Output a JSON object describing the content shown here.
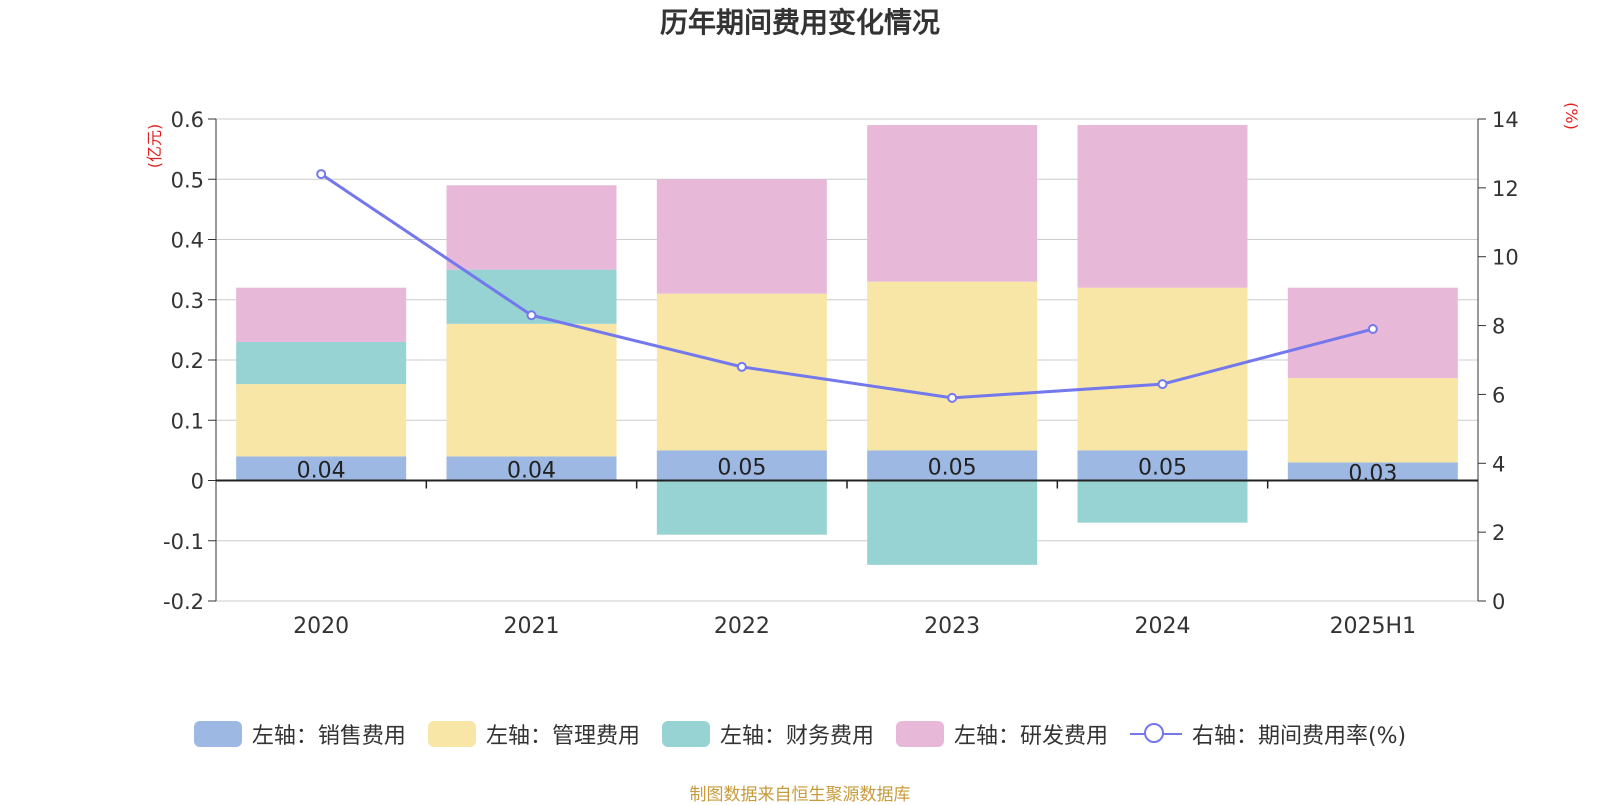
{
  "chart_data": {
    "type": "bar",
    "title": "历年期间费用变化情况",
    "categories": [
      "2020",
      "2021",
      "2022",
      "2023",
      "2024",
      "2025H1"
    ],
    "left_axis": {
      "unit": "(亿元)",
      "ylim": [
        -0.2,
        0.6
      ],
      "ticks": [
        -0.2,
        -0.1,
        0,
        0.1,
        0.2,
        0.3,
        0.4,
        0.5,
        0.6
      ]
    },
    "right_axis": {
      "unit": "(%)",
      "ylim": [
        0,
        14
      ],
      "ticks": [
        0,
        2,
        4,
        6,
        8,
        10,
        12,
        14
      ]
    },
    "series": [
      {
        "name": "左轴：销售费用",
        "axis": "left",
        "type": "bar",
        "color": "#9db8e2",
        "values": [
          0.04,
          0.04,
          0.05,
          0.05,
          0.05,
          0.03
        ],
        "labels": [
          "0.04",
          "0.04",
          "0.05",
          "0.05",
          "0.05",
          "0.03"
        ]
      },
      {
        "name": "左轴：管理费用",
        "axis": "left",
        "type": "bar",
        "color": "#f7e6a6",
        "values": [
          0.12,
          0.22,
          0.26,
          0.28,
          0.27,
          0.14
        ]
      },
      {
        "name": "左轴：财务费用",
        "axis": "left",
        "type": "bar",
        "color": "#97d3d3",
        "values": [
          0.07,
          0.09,
          -0.09,
          -0.14,
          -0.07,
          0.0
        ]
      },
      {
        "name": "左轴：研发费用",
        "axis": "left",
        "type": "bar",
        "color": "#e8b8d8",
        "values": [
          0.09,
          0.14,
          0.19,
          0.26,
          0.27,
          0.15
        ]
      },
      {
        "name": "右轴：期间费用率(%)",
        "axis": "right",
        "type": "line",
        "color": "#7378ec",
        "values": [
          12.4,
          8.3,
          6.8,
          5.9,
          6.3,
          7.9
        ]
      }
    ],
    "grid": true,
    "legend_position": "bottom"
  },
  "source_note": "制图数据来自恒生聚源数据库"
}
